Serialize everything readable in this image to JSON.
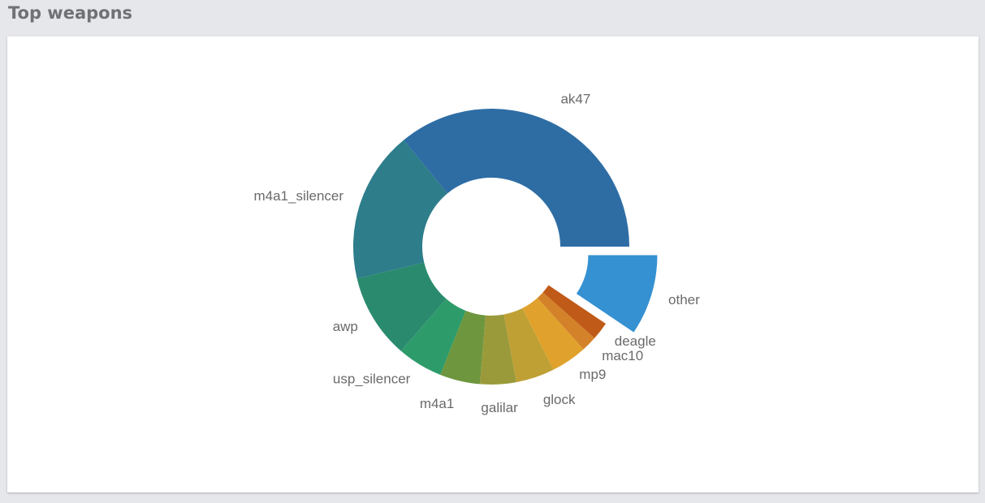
{
  "chart_data": {
    "type": "pie",
    "title": "Top weapons",
    "donut": true,
    "categories": [
      "ak47",
      "m4a1_silencer",
      "awp",
      "usp_silencer",
      "m4a1",
      "galilar",
      "glock",
      "mp9",
      "mac10",
      "deagle",
      "other"
    ],
    "values": [
      35.8,
      17.7,
      9.9,
      5.3,
      4.7,
      4.2,
      4.5,
      4.2,
      1.8,
      2.1,
      9.4
    ],
    "colors": [
      "#2e6da4",
      "#2e7d8a",
      "#2a8a6e",
      "#2e9b6a",
      "#6e963e",
      "#9a9a3a",
      "#bfa035",
      "#e0a22c",
      "#d4822a",
      "#c05a18",
      "#3591d1"
    ],
    "exploded": [
      false,
      false,
      false,
      false,
      false,
      false,
      false,
      false,
      false,
      false,
      true
    ]
  }
}
